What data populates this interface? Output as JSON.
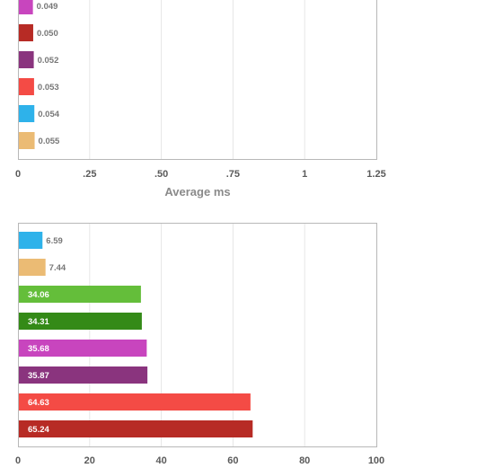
{
  "chart_data": [
    {
      "type": "bar",
      "orientation": "horizontal",
      "xlabel": "Average ms",
      "xlim": [
        0,
        1.25
      ],
      "xticks": [
        "0",
        ".25",
        ".50",
        ".75",
        "1",
        "1.25"
      ],
      "grid": true,
      "bars": [
        {
          "value": 0.049,
          "label": "0.049",
          "color": "#c845be"
        },
        {
          "value": 0.05,
          "label": "0.050",
          "color": "#b72b25"
        },
        {
          "value": 0.052,
          "label": "0.052",
          "color": "#8a347e"
        },
        {
          "value": 0.053,
          "label": "0.053",
          "color": "#f44b45"
        },
        {
          "value": 0.054,
          "label": "0.054",
          "color": "#2eb2ea"
        },
        {
          "value": 0.055,
          "label": "0.055",
          "color": "#ebbb74"
        }
      ]
    },
    {
      "type": "bar",
      "orientation": "horizontal",
      "xlabel": "",
      "xlim": [
        0,
        100
      ],
      "xticks": [
        "0",
        "20",
        "40",
        "60",
        "80",
        "100"
      ],
      "grid": true,
      "bars": [
        {
          "value": 6.59,
          "label": "6.59",
          "color": "#2eb2ea"
        },
        {
          "value": 7.44,
          "label": "7.44",
          "color": "#ebbb74"
        },
        {
          "value": 34.06,
          "label": "34.06",
          "color": "#64be3a"
        },
        {
          "value": 34.31,
          "label": "34.31",
          "color": "#348a17"
        },
        {
          "value": 35.68,
          "label": "35.68",
          "color": "#c845be"
        },
        {
          "value": 35.87,
          "label": "35.87",
          "color": "#8a347e"
        },
        {
          "value": 64.63,
          "label": "64.63",
          "color": "#f44b45"
        },
        {
          "value": 65.24,
          "label": "65.24",
          "color": "#b72b25"
        }
      ]
    }
  ]
}
